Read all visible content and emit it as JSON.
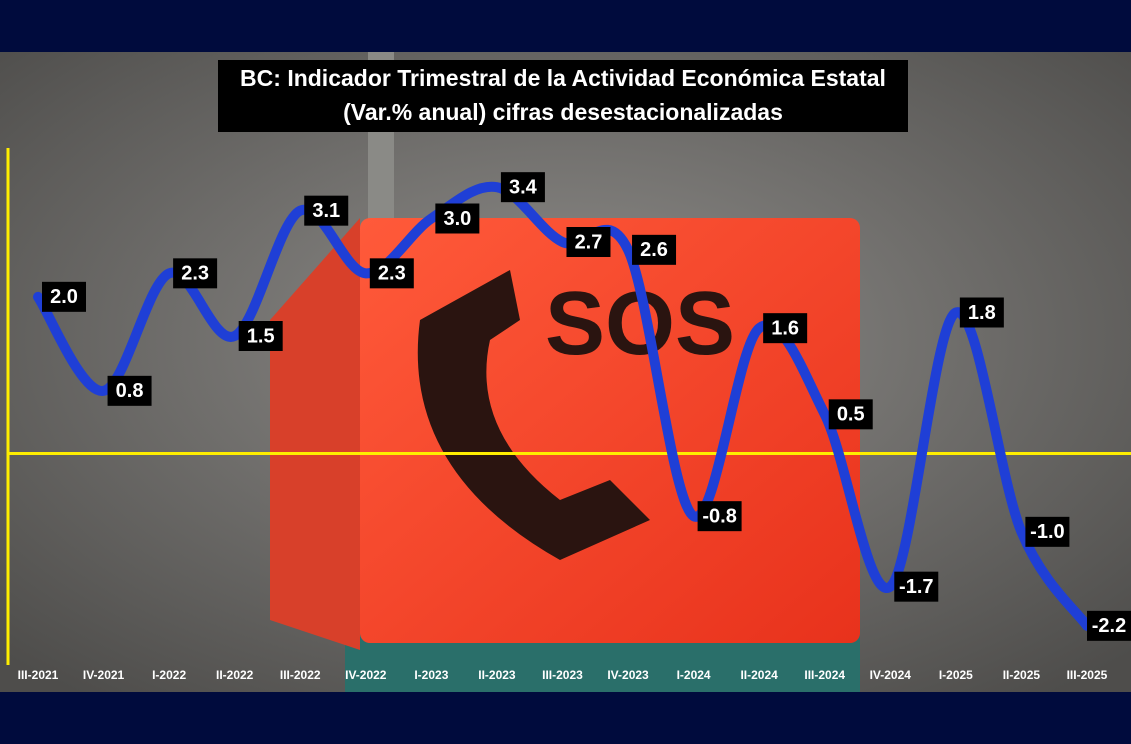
{
  "chart_data": {
    "type": "line",
    "title": "BC: Indicador Trimestral de la Actividad Económica Estatal",
    "subtitle": "(Var.% anual) cifras desestacionalizadas",
    "categories": [
      "III-2021",
      "IV-2021",
      "I-2022",
      "II-2022",
      "III-2022",
      "IV-2022",
      "I-2023",
      "II-2023",
      "III-2023",
      "IV-2023",
      "I-2024",
      "II-2024",
      "III-2024",
      "IV-2024",
      "I-2025",
      "II-2025",
      "III-2025"
    ],
    "values": [
      2.0,
      0.8,
      2.3,
      1.5,
      3.1,
      2.3,
      3.0,
      3.4,
      2.7,
      2.6,
      -0.8,
      1.6,
      0.5,
      -1.7,
      1.8,
      -1.0,
      -2.2
    ],
    "value_labels": [
      "2.0",
      "0.8",
      "2.3",
      "1.5",
      "3.1",
      "2.3",
      "3.0",
      "3.4",
      "2.7",
      "2.6",
      "-0.8",
      "1.6",
      "0.5",
      "-1.7",
      "1.8",
      "-1.0",
      "-2.2"
    ],
    "color": "#1f3fd6",
    "ylim": [
      -2.7,
      3.9
    ]
  }
}
